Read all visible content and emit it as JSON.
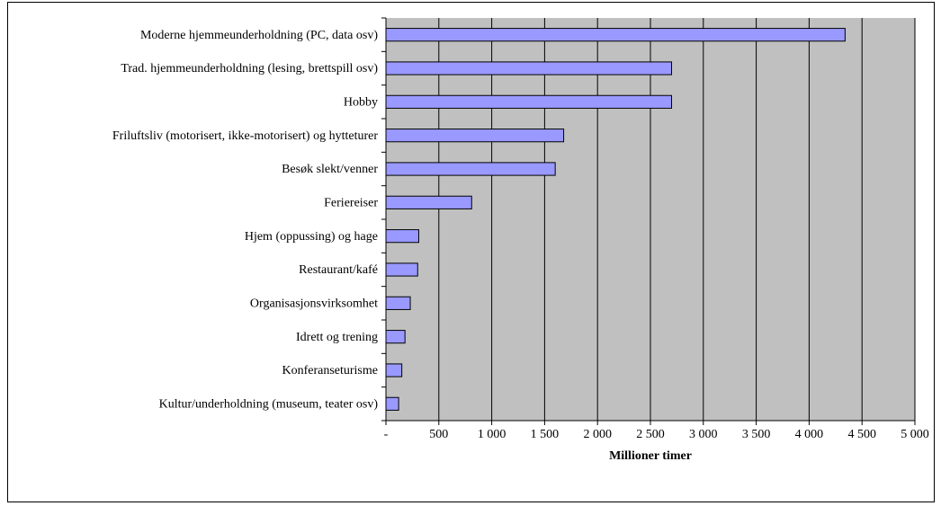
{
  "chart_data": {
    "type": "barh",
    "xlabel": "Millioner timer",
    "categories": [
      "Moderne hjemmeunderholdning (PC, data osv)",
      "Trad. hjemmeunderholdning (lesing, brettspill osv)",
      "Hobby",
      "Friluftsliv (motorisert, ikke-motorisert) og hytteturer",
      "Besøk slekt/venner",
      "Feriereiser",
      "Hjem (oppussing) og hage",
      "Restaurant/kafé",
      "Organisasjonsvirksomhet",
      "Idrett og trening",
      "Konferanseturisme",
      "Kultur/underholdning (museum, teater osv)"
    ],
    "values": [
      4340,
      2700,
      2700,
      1680,
      1600,
      810,
      310,
      300,
      230,
      180,
      150,
      120
    ],
    "color": "#9999ff",
    "xlim": [
      0,
      5000
    ],
    "xticks": [
      {
        "value": 0,
        "label": "-"
      },
      500,
      {
        "value": 1000,
        "label": "1 000"
      },
      {
        "value": 1500,
        "label": "1 500"
      },
      {
        "value": 2000,
        "label": "2 000"
      },
      {
        "value": 2500,
        "label": "2 500"
      },
      {
        "value": 3000,
        "label": "3 000"
      },
      {
        "value": 3500,
        "label": "3 500"
      },
      {
        "value": 4000,
        "label": "4 000"
      },
      {
        "value": 4500,
        "label": "4 500"
      },
      {
        "value": 5000,
        "label": "5 000"
      }
    ],
    "grid": true
  }
}
